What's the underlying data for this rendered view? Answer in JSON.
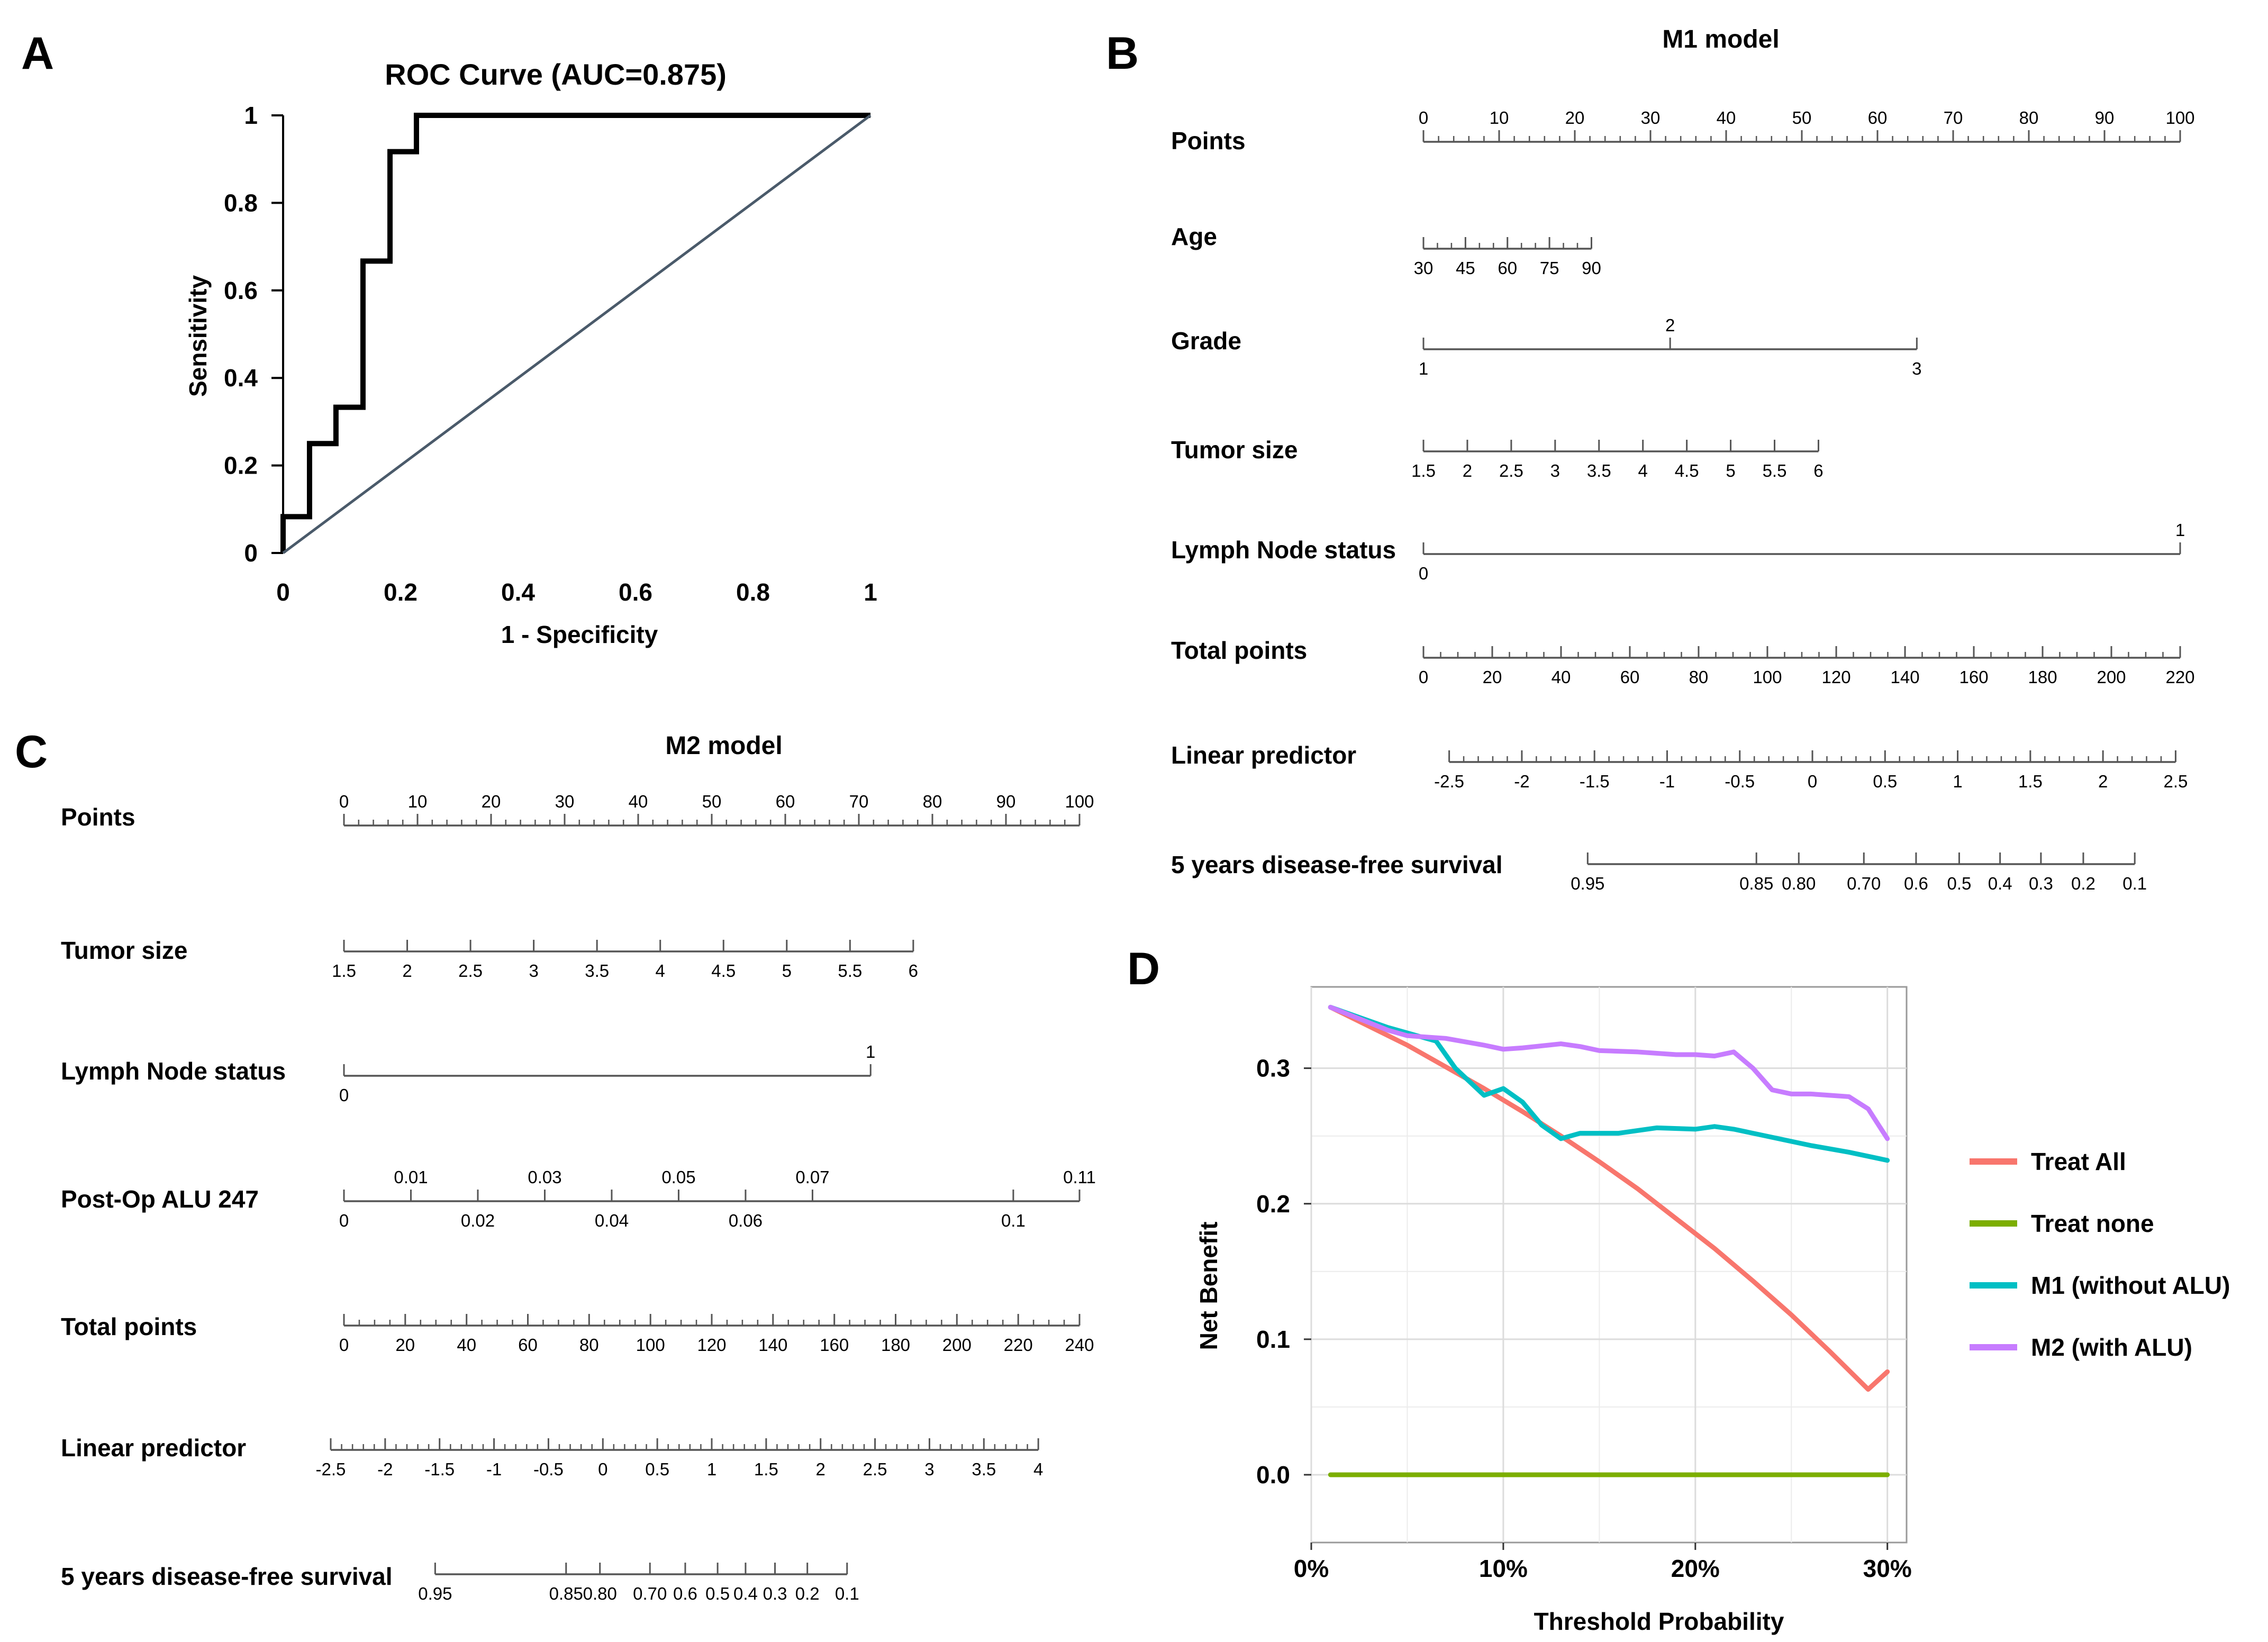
{
  "panels": {
    "a": "A",
    "b": "B",
    "c": "C",
    "d": "D"
  },
  "chart_data": [
    {
      "id": "A",
      "type": "line",
      "title": "ROC Curve (AUC=0.875)",
      "xlabel": "1 - Specificity",
      "ylabel": "Sensitivity",
      "xlim": [
        0,
        1
      ],
      "ylim": [
        0,
        1
      ],
      "xticks": [
        "0",
        "0.2",
        "0.4",
        "0.6",
        "0.8",
        "1"
      ],
      "yticks": [
        "0",
        "0.2",
        "0.4",
        "0.6",
        "0.8",
        "1"
      ],
      "grid": false,
      "series": [
        {
          "name": "ROC",
          "color": "#000000",
          "x": [
            0,
            0,
            0.045,
            0.045,
            0.09,
            0.09,
            0.136,
            0.136,
            0.182,
            0.182,
            0.227,
            0.227,
            1
          ],
          "y": [
            0,
            0.083,
            0.083,
            0.25,
            0.25,
            0.333,
            0.333,
            0.667,
            0.667,
            0.917,
            0.917,
            1,
            1
          ]
        },
        {
          "name": "Reference",
          "color": "#4a5a6a",
          "x": [
            0,
            1
          ],
          "y": [
            0,
            1
          ]
        }
      ]
    },
    {
      "id": "B",
      "type": "nomogram",
      "title": "M1 model",
      "points_max": 100,
      "rows": [
        {
          "label": "Points",
          "ticks": [
            {
              "v": 0,
              "l": "0"
            },
            {
              "v": 10,
              "l": "10"
            },
            {
              "v": 20,
              "l": "20"
            },
            {
              "v": 30,
              "l": "30"
            },
            {
              "v": 40,
              "l": "40"
            },
            {
              "v": 50,
              "l": "50"
            },
            {
              "v": 60,
              "l": "60"
            },
            {
              "v": 70,
              "l": "70"
            },
            {
              "v": 80,
              "l": "80"
            },
            {
              "v": 90,
              "l": "90"
            },
            {
              "v": 100,
              "l": "100"
            }
          ],
          "minor": [
            0,
            100,
            2
          ],
          "above": true
        },
        {
          "label": "Age",
          "ticks": [
            {
              "v": 0,
              "l": "30"
            },
            {
              "v": 5.55,
              "l": "45"
            },
            {
              "v": 11.1,
              "l": "60"
            },
            {
              "v": 16.65,
              "l": "75"
            },
            {
              "v": 22.2,
              "l": "90"
            }
          ],
          "minor": [
            0,
            22.2,
            1.85
          ]
        },
        {
          "label": "Grade",
          "ticks": [
            {
              "v": 0,
              "l": "1"
            },
            {
              "v": 32.6,
              "l": "2",
              "up": true
            },
            {
              "v": 65.2,
              "l": "3"
            }
          ]
        },
        {
          "label": "Tumor size",
          "ticks": [
            {
              "v": 0,
              "l": "1.5"
            },
            {
              "v": 5.8,
              "l": "2"
            },
            {
              "v": 11.6,
              "l": "2.5"
            },
            {
              "v": 17.4,
              "l": "3"
            },
            {
              "v": 23.2,
              "l": "3.5"
            },
            {
              "v": 29,
              "l": "4"
            },
            {
              "v": 34.8,
              "l": "4.5"
            },
            {
              "v": 40.6,
              "l": "5"
            },
            {
              "v": 46.4,
              "l": "5.5"
            },
            {
              "v": 52.2,
              "l": "6"
            }
          ]
        },
        {
          "label": "Lymph Node status",
          "ticks": [
            {
              "v": 0,
              "l": "0"
            },
            {
              "v": 100,
              "l": "1",
              "up": true
            }
          ]
        },
        {
          "label": "Total points",
          "ticks": [
            {
              "v": 0,
              "l": "0"
            },
            {
              "v": 9.09,
              "l": "20"
            },
            {
              "v": 18.18,
              "l": "40"
            },
            {
              "v": 27.27,
              "l": "60"
            },
            {
              "v": 36.36,
              "l": "80"
            },
            {
              "v": 45.45,
              "l": "100"
            },
            {
              "v": 54.55,
              "l": "120"
            },
            {
              "v": 63.64,
              "l": "140"
            },
            {
              "v": 72.73,
              "l": "160"
            },
            {
              "v": 81.82,
              "l": "180"
            },
            {
              "v": 90.91,
              "l": "200"
            },
            {
              "v": 100,
              "l": "220"
            }
          ],
          "minor": [
            0,
            100,
            2.2727
          ]
        },
        {
          "label": "Linear predictor",
          "ticks": [
            {
              "v": 3.4,
              "l": "-2.5"
            },
            {
              "v": 13.0,
              "l": "-2"
            },
            {
              "v": 22.6,
              "l": "-1.5"
            },
            {
              "v": 32.2,
              "l": "-1"
            },
            {
              "v": 41.8,
              "l": "-0.5"
            },
            {
              "v": 51.4,
              "l": "0"
            },
            {
              "v": 61.0,
              "l": "0.5"
            },
            {
              "v": 70.6,
              "l": "1"
            },
            {
              "v": 80.2,
              "l": "1.5"
            },
            {
              "v": 89.8,
              "l": "2"
            },
            {
              "v": 99.4,
              "l": "2.5"
            }
          ],
          "minor": [
            3.4,
            99.4,
            1.92
          ]
        },
        {
          "label": "5 years disease-free survival",
          "ticks": [
            {
              "v": 21.7,
              "l": "0.95"
            },
            {
              "v": 44,
              "l": "0.85"
            },
            {
              "v": 49.6,
              "l": "0.80"
            },
            {
              "v": 58.2,
              "l": "0.70"
            },
            {
              "v": 65.1,
              "l": "0.6"
            },
            {
              "v": 70.8,
              "l": "0.5"
            },
            {
              "v": 76.2,
              "l": "0.4"
            },
            {
              "v": 81.6,
              "l": "0.3"
            },
            {
              "v": 87.2,
              "l": "0.2"
            },
            {
              "v": 94,
              "l": "0.1"
            }
          ]
        }
      ]
    },
    {
      "id": "C",
      "type": "nomogram",
      "title": "M2 model",
      "points_max": 100,
      "rows": [
        {
          "label": "Points",
          "ticks": [
            {
              "v": 0,
              "l": "0"
            },
            {
              "v": 10,
              "l": "10"
            },
            {
              "v": 20,
              "l": "20"
            },
            {
              "v": 30,
              "l": "30"
            },
            {
              "v": 40,
              "l": "40"
            },
            {
              "v": 50,
              "l": "50"
            },
            {
              "v": 60,
              "l": "60"
            },
            {
              "v": 70,
              "l": "70"
            },
            {
              "v": 80,
              "l": "80"
            },
            {
              "v": 90,
              "l": "90"
            },
            {
              "v": 100,
              "l": "100"
            }
          ],
          "minor": [
            0,
            100,
            2
          ],
          "above": true
        },
        {
          "label": "Tumor size",
          "ticks": [
            {
              "v": 0,
              "l": "1.5"
            },
            {
              "v": 8.6,
              "l": "2"
            },
            {
              "v": 17.2,
              "l": "2.5"
            },
            {
              "v": 25.8,
              "l": "3"
            },
            {
              "v": 34.4,
              "l": "3.5"
            },
            {
              "v": 43,
              "l": "4"
            },
            {
              "v": 51.6,
              "l": "4.5"
            },
            {
              "v": 60.2,
              "l": "5"
            },
            {
              "v": 68.8,
              "l": "5.5"
            },
            {
              "v": 77.4,
              "l": "6"
            }
          ]
        },
        {
          "label": "Lymph Node status",
          "ticks": [
            {
              "v": 0,
              "l": "0"
            },
            {
              "v": 71.6,
              "l": "1",
              "up": true
            }
          ]
        },
        {
          "label": "Post-Op ALU 247",
          "ticks": [
            {
              "v": 0,
              "l": "0"
            },
            {
              "v": 9.1,
              "l": "0.01",
              "up": true
            },
            {
              "v": 18.2,
              "l": "0.02"
            },
            {
              "v": 27.3,
              "l": "0.03",
              "up": true
            },
            {
              "v": 36.4,
              "l": "0.04"
            },
            {
              "v": 45.5,
              "l": "0.05",
              "up": true
            },
            {
              "v": 54.6,
              "l": "0.06"
            },
            {
              "v": 63.7,
              "l": "0.07",
              "up": true
            },
            {
              "v": 91,
              "l": "0.1"
            },
            {
              "v": 100,
              "l": "0.11",
              "up": true
            }
          ]
        },
        {
          "label": "Total points",
          "ticks": [
            {
              "v": 0,
              "l": "0"
            },
            {
              "v": 8.33,
              "l": "20"
            },
            {
              "v": 16.67,
              "l": "40"
            },
            {
              "v": 25,
              "l": "60"
            },
            {
              "v": 33.33,
              "l": "80"
            },
            {
              "v": 41.67,
              "l": "100"
            },
            {
              "v": 50,
              "l": "120"
            },
            {
              "v": 58.33,
              "l": "140"
            },
            {
              "v": 66.67,
              "l": "160"
            },
            {
              "v": 75,
              "l": "180"
            },
            {
              "v": 83.33,
              "l": "200"
            },
            {
              "v": 91.67,
              "l": "220"
            },
            {
              "v": 100,
              "l": "240"
            }
          ],
          "minor": [
            0,
            100,
            2.0833
          ]
        },
        {
          "label": "Linear predictor",
          "ticks": [
            {
              "v": -1.8,
              "l": "-2.5"
            },
            {
              "v": 5.6,
              "l": "-2"
            },
            {
              "v": 13.0,
              "l": "-1.5"
            },
            {
              "v": 20.4,
              "l": "-1"
            },
            {
              "v": 27.8,
              "l": "-0.5"
            },
            {
              "v": 35.2,
              "l": "0"
            },
            {
              "v": 42.6,
              "l": "0.5"
            },
            {
              "v": 50,
              "l": "1"
            },
            {
              "v": 57.4,
              "l": "1.5"
            },
            {
              "v": 64.8,
              "l": "2"
            },
            {
              "v": 72.2,
              "l": "2.5"
            },
            {
              "v": 79.6,
              "l": "3"
            },
            {
              "v": 87,
              "l": "3.5"
            },
            {
              "v": 94.4,
              "l": "4"
            }
          ],
          "minor": [
            -1.8,
            94.4,
            1.48
          ]
        },
        {
          "label": "5 years disease-free survival",
          "ticks": [
            {
              "v": 12.4,
              "l": "0.95"
            },
            {
              "v": 30.2,
              "l": "0.85"
            },
            {
              "v": 34.8,
              "l": "0.80"
            },
            {
              "v": 41.6,
              "l": "0.70"
            },
            {
              "v": 46.4,
              "l": "0.6"
            },
            {
              "v": 50.8,
              "l": "0.5"
            },
            {
              "v": 54.6,
              "l": "0.4"
            },
            {
              "v": 58.6,
              "l": "0.3"
            },
            {
              "v": 63,
              "l": "0.2"
            },
            {
              "v": 68.4,
              "l": "0.1"
            }
          ]
        }
      ]
    },
    {
      "id": "D",
      "type": "line",
      "title": "",
      "xlabel": "Threshold Probability",
      "ylabel": "Net Benefit",
      "xlim": [
        0,
        0.31
      ],
      "ylim": [
        -0.05,
        0.36
      ],
      "xticks": [
        {
          "v": 0,
          "l": "0%"
        },
        {
          "v": 0.1,
          "l": "10%"
        },
        {
          "v": 0.2,
          "l": "20%"
        },
        {
          "v": 0.3,
          "l": "30%"
        }
      ],
      "yticks": [
        {
          "v": 0,
          "l": "0.0"
        },
        {
          "v": 0.1,
          "l": "0.1"
        },
        {
          "v": 0.2,
          "l": "0.2"
        },
        {
          "v": 0.3,
          "l": "0.3"
        }
      ],
      "grid": true,
      "legend": "right",
      "series": [
        {
          "name": "Treat All",
          "color": "#f8766d",
          "x": [
            0.01,
            0.03,
            0.05,
            0.07,
            0.09,
            0.11,
            0.13,
            0.15,
            0.17,
            0.19,
            0.21,
            0.23,
            0.25,
            0.27,
            0.29,
            0.3
          ],
          "y": [
            0.345,
            0.331,
            0.317,
            0.301,
            0.285,
            0.268,
            0.25,
            0.231,
            0.211,
            0.189,
            0.167,
            0.143,
            0.118,
            0.091,
            0.063,
            0.076
          ]
        },
        {
          "name": "Treat none",
          "color": "#7cae00",
          "x": [
            0.01,
            0.3
          ],
          "y": [
            0,
            0
          ]
        },
        {
          "name": "M1 (without ALU)",
          "color": "#00bfc4",
          "x": [
            0.01,
            0.04,
            0.065,
            0.075,
            0.09,
            0.1,
            0.11,
            0.12,
            0.13,
            0.14,
            0.16,
            0.18,
            0.2,
            0.21,
            0.22,
            0.24,
            0.26,
            0.28,
            0.3
          ],
          "y": [
            0.345,
            0.33,
            0.32,
            0.3,
            0.28,
            0.285,
            0.275,
            0.258,
            0.248,
            0.252,
            0.252,
            0.256,
            0.255,
            0.257,
            0.255,
            0.249,
            0.243,
            0.238,
            0.232
          ]
        },
        {
          "name": "M2 (with ALU)",
          "color": "#c77cff",
          "x": [
            0.01,
            0.04,
            0.05,
            0.07,
            0.09,
            0.1,
            0.11,
            0.13,
            0.14,
            0.15,
            0.17,
            0.19,
            0.2,
            0.21,
            0.22,
            0.23,
            0.24,
            0.25,
            0.26,
            0.27,
            0.28,
            0.29,
            0.3
          ],
          "y": [
            0.345,
            0.328,
            0.324,
            0.322,
            0.317,
            0.314,
            0.315,
            0.318,
            0.316,
            0.313,
            0.312,
            0.31,
            0.31,
            0.309,
            0.312,
            0.3,
            0.284,
            0.281,
            0.281,
            0.28,
            0.279,
            0.27,
            0.248
          ]
        }
      ]
    }
  ]
}
